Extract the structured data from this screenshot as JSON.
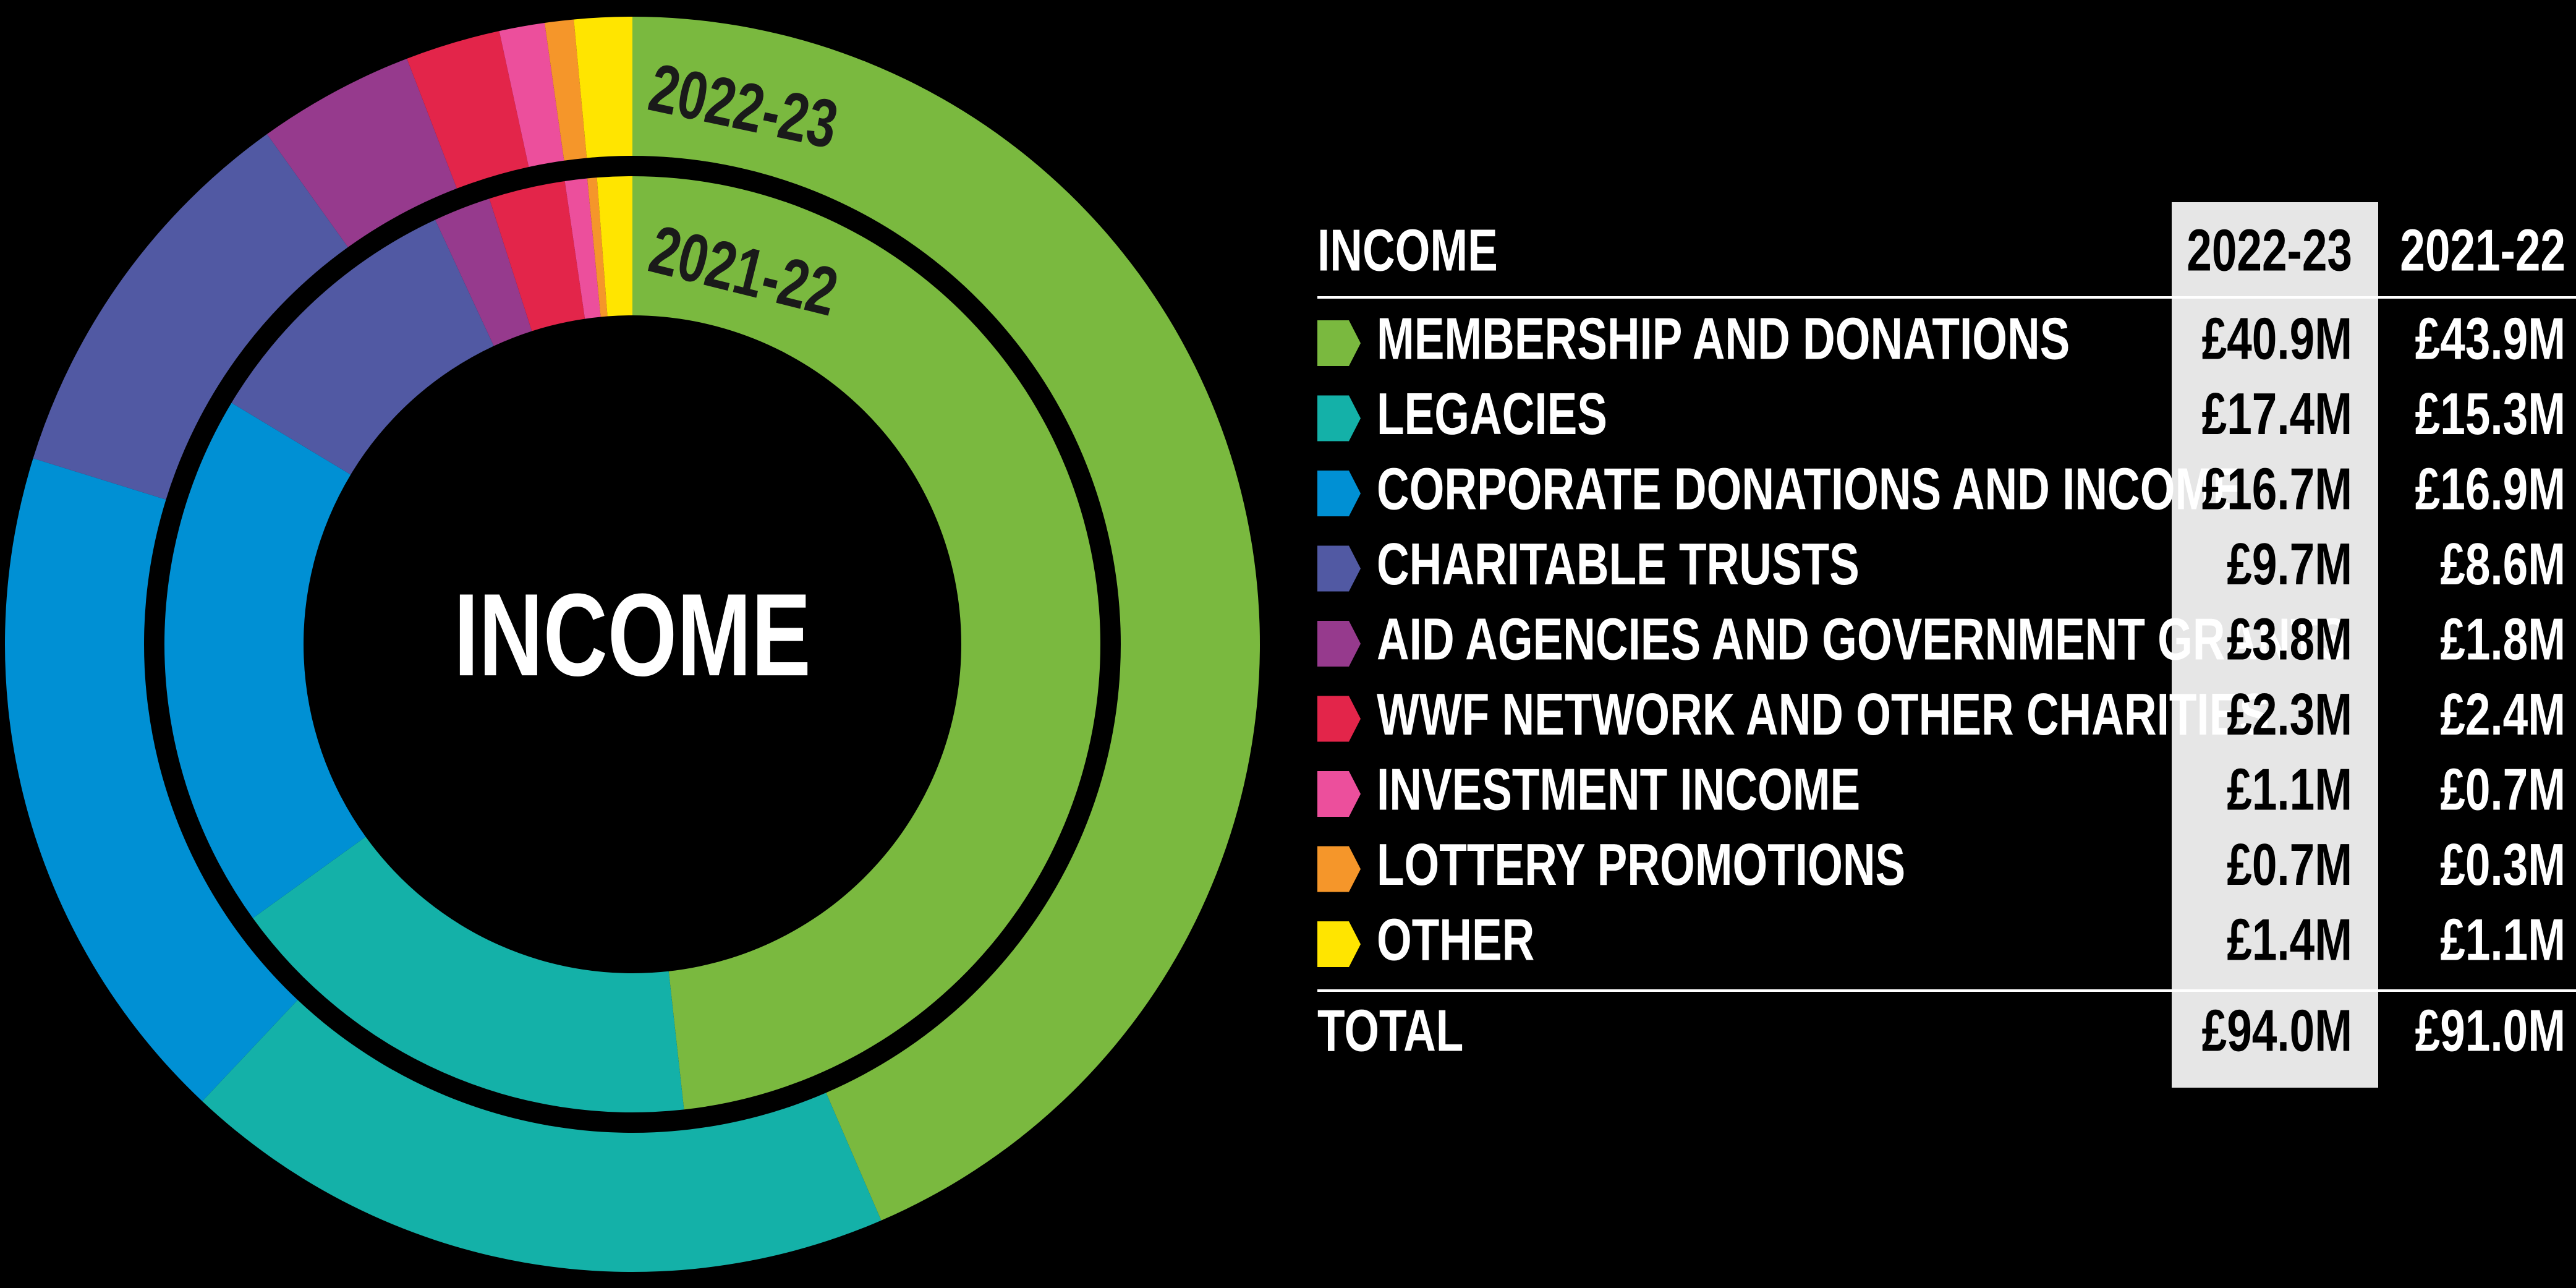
{
  "chart_data": {
    "type": "donut",
    "center_label": "INCOME",
    "categories": [
      "MEMBERSHIP AND DONATIONS",
      "LEGACIES",
      "CORPORATE DONATIONS AND INCOME",
      "CHARITABLE TRUSTS",
      "AID AGENCIES AND GOVERNMENT GRANTS",
      "WWF NETWORK AND OTHER CHARITIES",
      "INVESTMENT INCOME",
      "LOTTERY PROMOTIONS",
      "OTHER"
    ],
    "colors": [
      "#7ab93f",
      "#14b1a8",
      "#0090d4",
      "#5159a3",
      "#963a8d",
      "#e3254a",
      "#ec4f9c",
      "#f5962a",
      "#ffe500"
    ],
    "series": [
      {
        "name": "2022-23",
        "values": [
          40.9,
          17.4,
          16.7,
          9.7,
          3.8,
          2.3,
          1.1,
          0.7,
          1.4
        ],
        "value_labels": [
          "£40.9M",
          "£17.4M",
          "£16.7M",
          "£9.7M",
          "£3.8M",
          "£2.3M",
          "£1.1M",
          "£0.7M",
          "£1.4M"
        ],
        "total_label": "£94.0M"
      },
      {
        "name": "2021-22",
        "values": [
          43.9,
          15.3,
          16.9,
          8.6,
          1.8,
          2.4,
          0.7,
          0.3,
          1.1
        ],
        "value_labels": [
          "£43.9M",
          "£15.3M",
          "£16.9M",
          "£8.6M",
          "£1.8M",
          "£2.4M",
          "£0.7M",
          "£0.3M",
          "£1.1M"
        ],
        "total_label": "£91.0M"
      }
    ]
  },
  "table": {
    "header": "INCOME",
    "total_row": "TOTAL"
  }
}
